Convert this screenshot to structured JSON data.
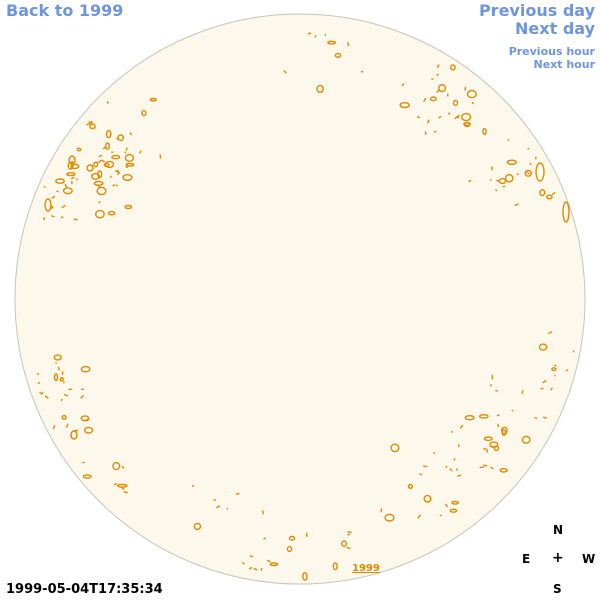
{
  "nav": {
    "back_label": "Back to 1999",
    "prev_day_label": "Previous day",
    "next_day_label": "Next day",
    "prev_hour_label": "Previous hour",
    "next_hour_label": "Next hour"
  },
  "compass": {
    "north": "N",
    "east": "E",
    "center": "+",
    "west": "W",
    "south": "S"
  },
  "timestamp": "1999-05-04T17:35:34",
  "year_link": "1999",
  "colors": {
    "disk_fill": "#fdf8ec",
    "disk_edge": "#c8c4ba",
    "contour": "#e08a00",
    "link": "#6d95e0"
  }
}
